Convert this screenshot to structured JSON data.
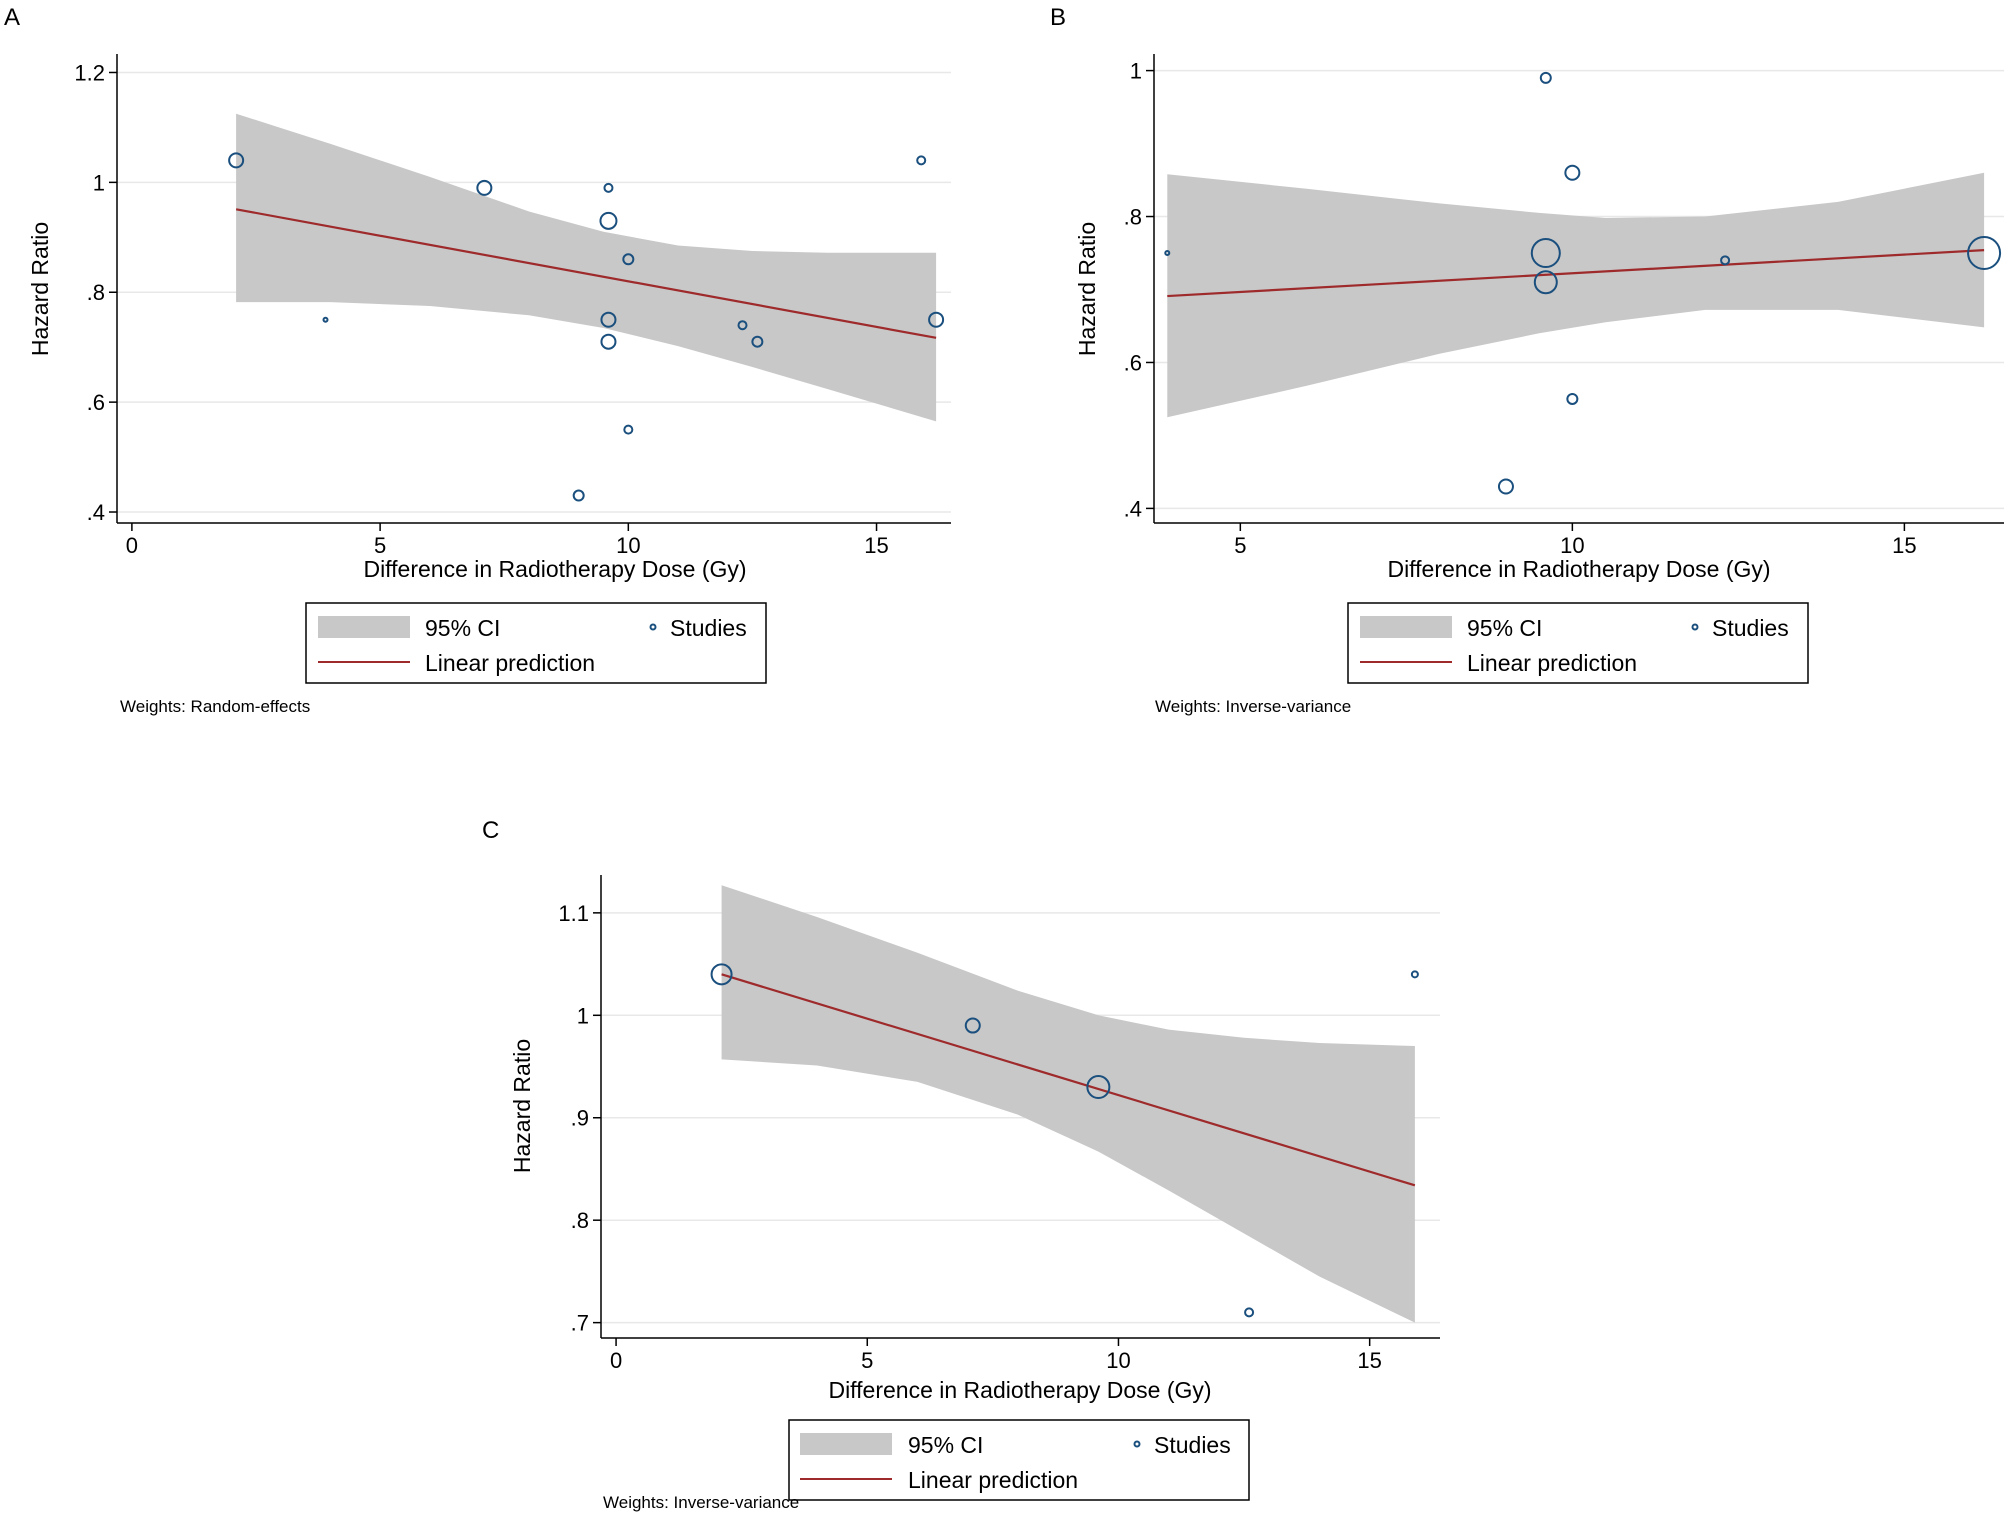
{
  "colors": {
    "ci_fill": "#c8c8c8",
    "line": "#9e2a2b",
    "marker": "#1a4f7e",
    "axis": "#000000",
    "grid": "#e8e8e8"
  },
  "chart_data": [
    {
      "panel": "A",
      "type": "scatter",
      "xlabel": "Difference in Radiotherapy Dose (Gy)",
      "ylabel": "Hazard Ratio",
      "xlim": [
        -0.3,
        16.5
      ],
      "ylim": [
        0.38,
        1.23
      ],
      "xticks": [
        0,
        5,
        10,
        15
      ],
      "yticks": [
        0.4,
        0.6,
        0.8,
        1.0,
        1.2
      ],
      "yticklabels": [
        ".4",
        ".6",
        ".8",
        "1",
        "1.2"
      ],
      "grid": true,
      "studies": [
        {
          "x": 2.1,
          "y": 1.04,
          "weight": 7
        },
        {
          "x": 3.9,
          "y": 0.75,
          "weight": 2
        },
        {
          "x": 7.1,
          "y": 0.99,
          "weight": 7
        },
        {
          "x": 9.0,
          "y": 0.43,
          "weight": 5
        },
        {
          "x": 9.6,
          "y": 0.99,
          "weight": 4
        },
        {
          "x": 9.6,
          "y": 0.93,
          "weight": 8
        },
        {
          "x": 9.6,
          "y": 0.75,
          "weight": 7
        },
        {
          "x": 9.6,
          "y": 0.71,
          "weight": 7
        },
        {
          "x": 10.0,
          "y": 0.86,
          "weight": 5
        },
        {
          "x": 10.0,
          "y": 0.55,
          "weight": 4
        },
        {
          "x": 12.3,
          "y": 0.74,
          "weight": 4
        },
        {
          "x": 12.6,
          "y": 0.71,
          "weight": 5
        },
        {
          "x": 15.9,
          "y": 1.04,
          "weight": 4
        },
        {
          "x": 16.2,
          "y": 0.75,
          "weight": 7
        }
      ],
      "prediction": {
        "x": [
          2.1,
          16.2
        ],
        "y": [
          0.951,
          0.717
        ]
      },
      "ci": {
        "x": [
          2.1,
          4.0,
          6.0,
          8.0,
          9.5,
          11.0,
          12.5,
          14.0,
          16.2
        ],
        "upper": [
          1.125,
          1.07,
          1.01,
          0.947,
          0.91,
          0.885,
          0.875,
          0.872,
          0.872
        ],
        "lower": [
          0.782,
          0.782,
          0.775,
          0.758,
          0.735,
          0.702,
          0.664,
          0.624,
          0.565
        ]
      },
      "legend": {
        "ci_label": "95% CI",
        "studies_label": "Studies",
        "line_label": "Linear prediction"
      },
      "note": "Weights: Random-effects"
    },
    {
      "panel": "B",
      "type": "scatter",
      "xlabel": "Difference in Radiotherapy Dose (Gy)",
      "ylabel": "Hazard Ratio",
      "xlim": [
        3.7,
        16.5
      ],
      "ylim": [
        0.38,
        1.02
      ],
      "xticks": [
        5,
        10,
        15
      ],
      "yticks": [
        0.4,
        0.6,
        0.8,
        1.0
      ],
      "yticklabels": [
        ".4",
        ".6",
        ".8",
        "1"
      ],
      "grid": true,
      "studies": [
        {
          "x": 3.9,
          "y": 0.75,
          "weight": 2
        },
        {
          "x": 9.0,
          "y": 0.43,
          "weight": 7
        },
        {
          "x": 9.6,
          "y": 0.99,
          "weight": 5
        },
        {
          "x": 9.6,
          "y": 0.75,
          "weight": 14
        },
        {
          "x": 9.6,
          "y": 0.71,
          "weight": 11
        },
        {
          "x": 10.0,
          "y": 0.86,
          "weight": 7
        },
        {
          "x": 10.0,
          "y": 0.55,
          "weight": 5
        },
        {
          "x": 12.3,
          "y": 0.74,
          "weight": 4
        },
        {
          "x": 16.2,
          "y": 0.75,
          "weight": 16
        }
      ],
      "prediction": {
        "x": [
          3.9,
          16.2
        ],
        "y": [
          0.691,
          0.754
        ]
      },
      "ci": {
        "x": [
          3.9,
          6.0,
          8.0,
          9.5,
          10.5,
          12.0,
          14.0,
          16.2
        ],
        "upper": [
          0.858,
          0.838,
          0.818,
          0.805,
          0.798,
          0.8,
          0.82,
          0.86
        ],
        "lower": [
          0.525,
          0.568,
          0.612,
          0.64,
          0.655,
          0.672,
          0.672,
          0.648
        ]
      },
      "legend": {
        "ci_label": "95% CI",
        "studies_label": "Studies",
        "line_label": "Linear prediction"
      },
      "note": "Weights: Inverse-variance"
    },
    {
      "panel": "C",
      "type": "scatter",
      "xlabel": "Difference in Radiotherapy Dose (Gy)",
      "ylabel": "Hazard Ratio",
      "xlim": [
        -0.3,
        16.4
      ],
      "ylim": [
        0.685,
        1.135
      ],
      "xticks": [
        0,
        5,
        10,
        15
      ],
      "yticks": [
        0.7,
        0.8,
        0.9,
        1.0,
        1.1
      ],
      "yticklabels": [
        ".7",
        ".8",
        ".9",
        "1",
        "1.1"
      ],
      "grid": true,
      "studies": [
        {
          "x": 2.1,
          "y": 1.04,
          "weight": 10
        },
        {
          "x": 7.1,
          "y": 0.99,
          "weight": 7
        },
        {
          "x": 9.6,
          "y": 0.93,
          "weight": 11
        },
        {
          "x": 12.6,
          "y": 0.71,
          "weight": 4
        },
        {
          "x": 15.9,
          "y": 1.04,
          "weight": 3
        }
      ],
      "prediction": {
        "x": [
          2.1,
          15.9
        ],
        "y": [
          1.04,
          0.834
        ]
      },
      "ci": {
        "x": [
          2.1,
          4.0,
          6.0,
          8.0,
          9.6,
          11.0,
          12.5,
          14.0,
          15.9
        ],
        "upper": [
          1.127,
          1.096,
          1.061,
          1.024,
          1.0,
          0.986,
          0.978,
          0.973,
          0.97
        ],
        "lower": [
          0.957,
          0.951,
          0.935,
          0.903,
          0.867,
          0.829,
          0.787,
          0.745,
          0.7
        ]
      },
      "legend": {
        "ci_label": "95% CI",
        "studies_label": "Studies",
        "line_label": "Linear prediction"
      },
      "note": "Weights: Inverse-variance"
    }
  ]
}
